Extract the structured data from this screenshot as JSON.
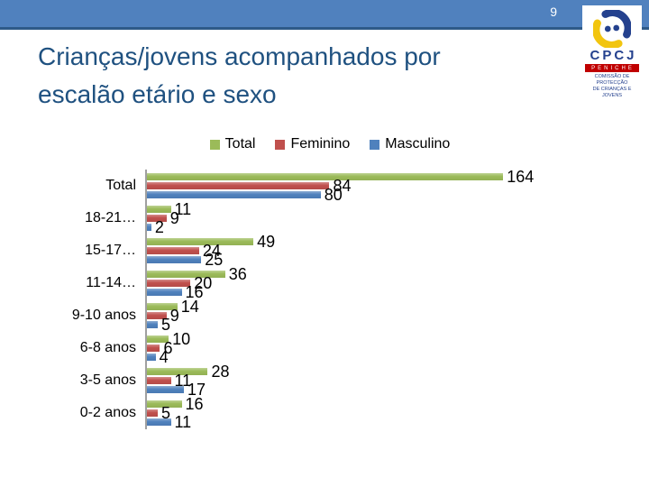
{
  "slide": {
    "page_number": "9",
    "title_line1": "Crianças/jovens acompanhados por",
    "title_line2": "escalão etário e sexo"
  },
  "logo": {
    "acronym": "CPCJ",
    "region": "PENICHE",
    "subtitle_line1": "COMISSÃO DE PROTECÇÃO",
    "subtitle_line2": "DE CRIANÇAS E JOVENS"
  },
  "colors": {
    "header_bar": "#5081BE",
    "header_edge": "#2E5A88",
    "title_text": "#1F5180",
    "axis": "#A0A0A0",
    "logo_red": "#C00000",
    "emblem_blue": "#24418E",
    "emblem_yellow": "#F2C50F"
  },
  "chart_data": {
    "type": "bar",
    "orientation": "horizontal",
    "title": "",
    "xlabel": "",
    "ylabel": "",
    "categories": [
      "Total",
      "18-21…",
      "15-17…",
      "11-14…",
      "9-10 anos",
      "6-8 anos",
      "3-5 anos",
      "0-2 anos"
    ],
    "series": [
      {
        "name": "Total",
        "color": "#9BBB59",
        "values": [
          164,
          11,
          49,
          36,
          14,
          10,
          28,
          16
        ]
      },
      {
        "name": "Feminino",
        "color": "#C0504D",
        "values": [
          84,
          9,
          24,
          20,
          9,
          6,
          11,
          5
        ]
      },
      {
        "name": "Masculino",
        "color": "#4F81BD",
        "values": [
          80,
          2,
          25,
          16,
          5,
          4,
          17,
          11
        ]
      }
    ],
    "xlim": [
      0,
      180
    ],
    "data_labels": true,
    "legend_position": "top",
    "grid": false
  }
}
